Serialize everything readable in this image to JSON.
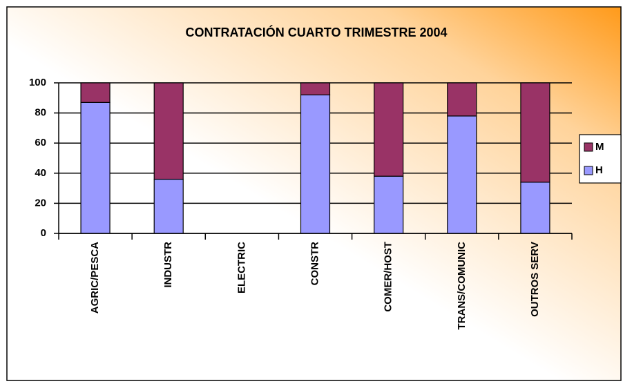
{
  "chart_data": {
    "type": "bar",
    "stacked": true,
    "title": "CONTRATACIÓN CUARTO TRIMESTRE 2004",
    "categories": [
      "AGRIC/PESCA",
      "INDUSTR",
      "ELECTRIC",
      "CONSTR",
      "COMER/HOST",
      "TRANS/COMUNIC",
      "OUTROS SERV"
    ],
    "series": [
      {
        "name": "H",
        "color": "#9999ff",
        "values": [
          87,
          36,
          null,
          92,
          38,
          78,
          34
        ]
      },
      {
        "name": "M",
        "color": "#993366",
        "values": [
          13,
          64,
          null,
          8,
          62,
          22,
          66
        ]
      }
    ],
    "ylim": [
      0,
      100
    ],
    "yticks": [
      0,
      20,
      40,
      60,
      80,
      100
    ],
    "grid": true,
    "legend": "right"
  }
}
